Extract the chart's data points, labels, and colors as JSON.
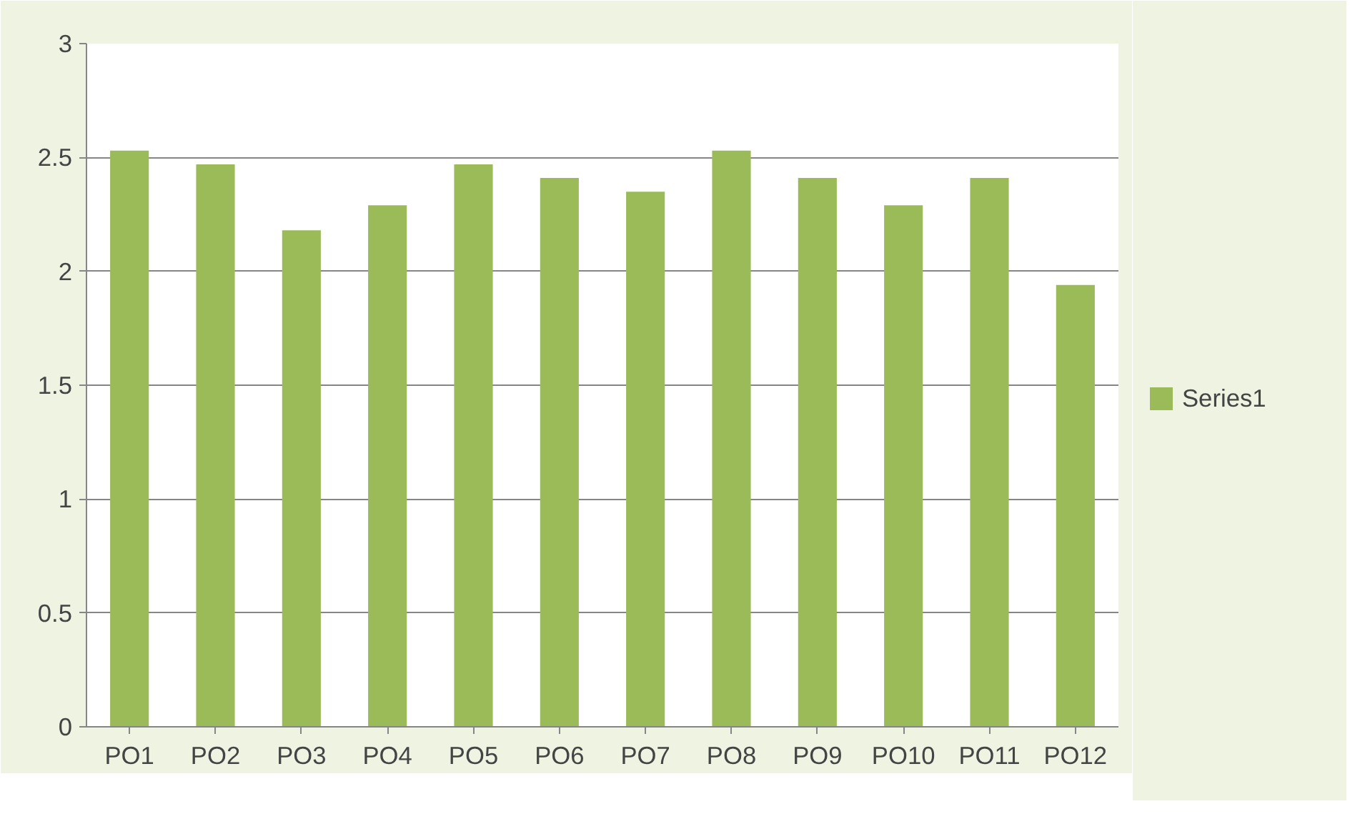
{
  "chart_data": {
    "type": "bar",
    "categories": [
      "PO1",
      "PO2",
      "PO3",
      "PO4",
      "PO5",
      "PO6",
      "PO7",
      "PO8",
      "PO9",
      "PO10",
      "PO11",
      "PO12"
    ],
    "series": [
      {
        "name": "Series1",
        "color": "#9bbb59",
        "values": [
          2.53,
          2.47,
          2.18,
          2.29,
          2.47,
          2.41,
          2.35,
          2.53,
          2.41,
          2.29,
          2.41,
          1.94
        ]
      }
    ],
    "ylim": [
      0,
      3
    ],
    "yticks": [
      0,
      0.5,
      1,
      1.5,
      2,
      2.5,
      3
    ],
    "grid": "y",
    "legend": "right"
  }
}
